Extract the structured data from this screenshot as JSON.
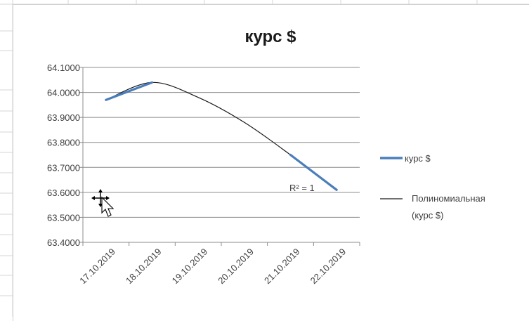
{
  "chart_data": {
    "type": "line",
    "title": "курс $",
    "xlabel": "",
    "ylabel": "",
    "categories": [
      "17.10.2019",
      "18.10.2019",
      "19.10.2019",
      "20.10.2019",
      "21.10.2019",
      "22.10.2019"
    ],
    "y_ticks": [
      "64.1000",
      "64.0000",
      "63.9000",
      "63.8000",
      "63.7000",
      "63.6000",
      "63.5000",
      "63.4000"
    ],
    "ylim": [
      63.4,
      64.1
    ],
    "series": [
      {
        "name": "курс $",
        "color": "#4a7ebb",
        "points": [
          {
            "x": "17.10.2019",
            "y": 63.97
          },
          {
            "x": "18.10.2019",
            "y": 64.04
          },
          {
            "x": "21.10.2019",
            "y": 63.75
          },
          {
            "x": "22.10.2019",
            "y": 63.61
          }
        ]
      },
      {
        "name": "Полиномиальная (курс $)",
        "color": "#1a1a1a",
        "trendline": "polynomial",
        "points": [
          {
            "x": "17.10.2019",
            "y": 63.97
          },
          {
            "x": "18.10.2019",
            "y": 64.04
          },
          {
            "x": "19.10.2019",
            "y": 63.98
          },
          {
            "x": "20.10.2019",
            "y": 63.88
          },
          {
            "x": "21.10.2019",
            "y": 63.75
          },
          {
            "x": "22.10.2019",
            "y": 63.61
          }
        ]
      }
    ],
    "legend": {
      "position": "right",
      "entries": [
        "курс $",
        "Полиномиальная",
        "(курс $)"
      ]
    },
    "annotation": "R² = 1",
    "grid": true
  }
}
